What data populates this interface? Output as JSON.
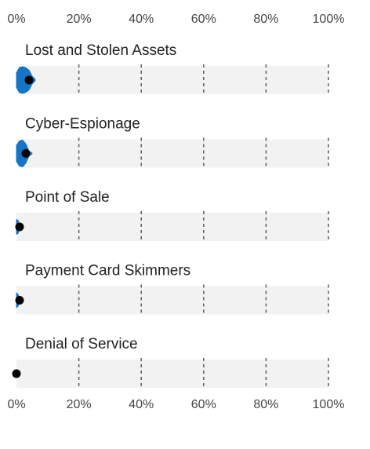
{
  "chart_data": {
    "type": "violin-dot",
    "xlim": [
      0,
      100
    ],
    "x_unit": "%",
    "x_ticks": [
      "0%",
      "20%",
      "40%",
      "60%",
      "80%",
      "100%"
    ],
    "grid": "dashed vertical",
    "colors": {
      "distribution": "#1674c6",
      "median_dot": "#000000",
      "panel_background": "#f2f2f2",
      "grid": "#666666"
    },
    "series": [
      {
        "name": "Lost and Stolen Assets",
        "median": 4,
        "distribution": [
          [
            0,
            0.55
          ],
          [
            1,
            0.95
          ],
          [
            2,
            1.0
          ],
          [
            3,
            0.92
          ],
          [
            4,
            0.75
          ],
          [
            5,
            0.3
          ],
          [
            6,
            0.05
          ]
        ]
      },
      {
        "name": "Cyber-Espionage",
        "median": 3,
        "distribution": [
          [
            0,
            0.6
          ],
          [
            1,
            0.95
          ],
          [
            2,
            1.0
          ],
          [
            3,
            0.72
          ],
          [
            4,
            0.2
          ],
          [
            5,
            0.02
          ]
        ]
      },
      {
        "name": "Point of Sale",
        "median": 1,
        "distribution": [
          [
            0,
            0.55
          ],
          [
            0.5,
            0.5
          ],
          [
            1,
            0.15
          ],
          [
            1.5,
            0.02
          ]
        ]
      },
      {
        "name": "Payment Card Skimmers",
        "median": 1,
        "distribution": [
          [
            0,
            0.55
          ],
          [
            0.5,
            0.45
          ],
          [
            1,
            0.12
          ],
          [
            1.5,
            0.02
          ]
        ]
      },
      {
        "name": "Denial of Service",
        "median": 0,
        "distribution": [
          [
            0,
            0.3
          ],
          [
            0.3,
            0.1
          ],
          [
            0.6,
            0.01
          ]
        ]
      }
    ]
  }
}
